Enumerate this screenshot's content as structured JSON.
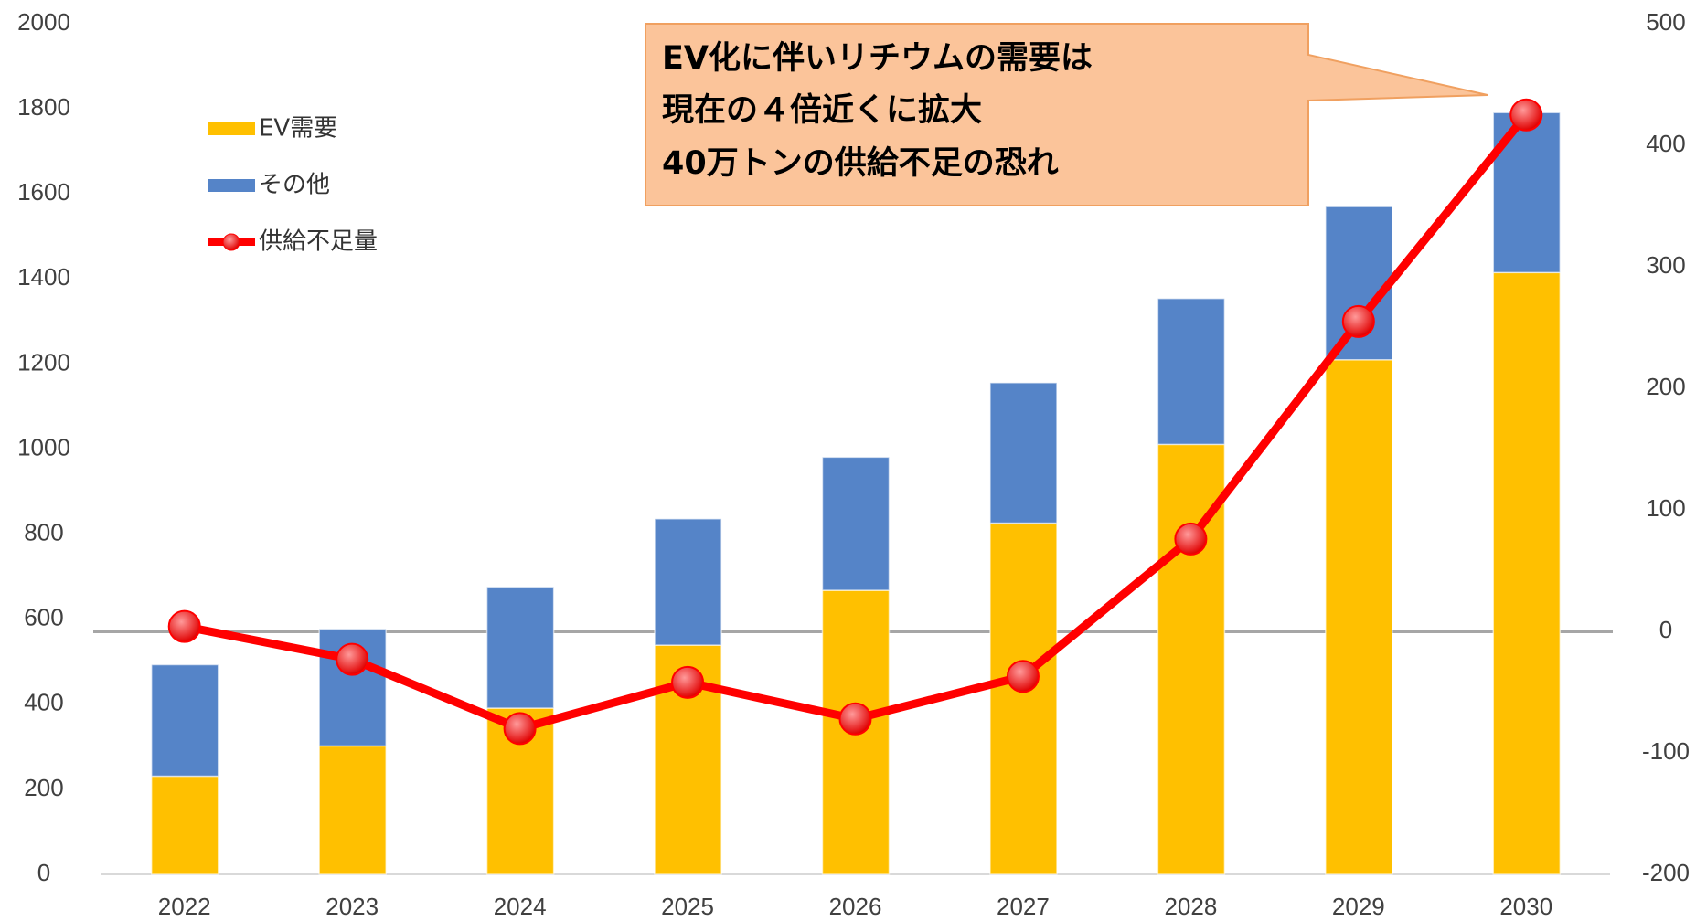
{
  "chart_data": {
    "type": "bar",
    "annotation": [
      "EV化に伴いリチウムの需要は",
      "現在の４倍近くに拡大",
      "40万トンの供給不足の恐れ"
    ],
    "categories": [
      "2022",
      "2023",
      "2024",
      "2025",
      "2026",
      "2027",
      "2028",
      "2029",
      "2030"
    ],
    "series": [
      {
        "name": "EV需要",
        "color": "#ffc000",
        "values": [
          231,
          302,
          391,
          539,
          668,
          826,
          1011,
          1210,
          1415
        ]
      },
      {
        "name": "その他",
        "color": "#5584c8",
        "values": [
          262,
          275,
          285,
          297,
          313,
          330,
          343,
          360,
          376
        ]
      },
      {
        "name": "供給不足量",
        "color": "#ff0000",
        "axis": "y2",
        "values": [
          4,
          -23,
          -80,
          -42,
          -72,
          -37,
          76,
          255,
          425
        ]
      }
    ],
    "ylim": [
      0,
      2000
    ],
    "yticks": [
      0,
      200,
      400,
      600,
      800,
      1000,
      1200,
      1400,
      1600,
      1800,
      2000
    ],
    "y2lim": [
      -200,
      500
    ],
    "y2ticks": [
      -200,
      -100,
      0,
      100,
      200,
      300,
      400,
      500
    ]
  }
}
